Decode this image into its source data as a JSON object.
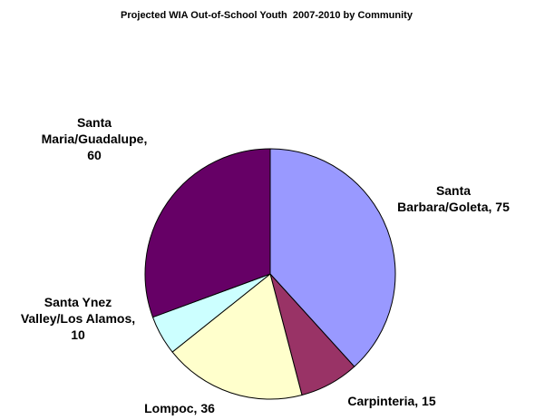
{
  "chart_data": {
    "type": "pie",
    "title": "Projected WIA Out-of-School Youth  2007-2010 by Community",
    "start_angle_deg": 0,
    "direction": "clockwise",
    "slices": [
      {
        "label_lines": [
          "Santa",
          "Barbara/Goleta, 75"
        ],
        "value": 75,
        "color": "#9999FF"
      },
      {
        "label_lines": [
          "Carpinteria, 15"
        ],
        "value": 15,
        "color": "#993366"
      },
      {
        "label_lines": [
          "Lompoc, 36"
        ],
        "value": 36,
        "color": "#FFFFCC"
      },
      {
        "label_lines": [
          "Santa Ynez",
          "Valley/Los Alamos,",
          "10"
        ],
        "value": 10,
        "color": "#CCFFFF"
      },
      {
        "label_lines": [
          "Santa",
          "Maria/Guadalupe,",
          "60"
        ],
        "value": 60,
        "color": "#660066"
      }
    ]
  }
}
